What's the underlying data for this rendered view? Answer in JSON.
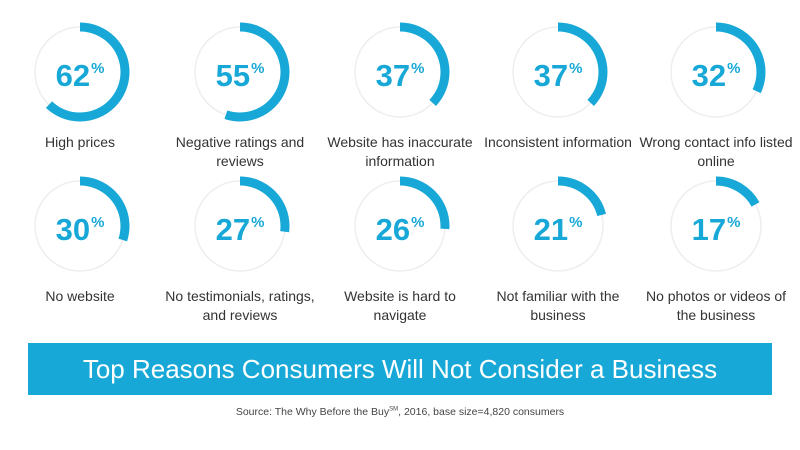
{
  "colors": {
    "accent": "#17a8d7",
    "track": "#eeeeee",
    "text": "#333333"
  },
  "chart_data": {
    "type": "donut",
    "items": [
      {
        "value": 62,
        "label": "High prices"
      },
      {
        "value": 55,
        "label": "Negative ratings and reviews"
      },
      {
        "value": 37,
        "label": "Website has inaccurate information"
      },
      {
        "value": 37,
        "label": "Inconsistent information"
      },
      {
        "value": 32,
        "label": "Wrong contact info listed online"
      },
      {
        "value": 30,
        "label": "No website"
      },
      {
        "value": 27,
        "label": "No testimonials, ratings, and reviews"
      },
      {
        "value": 26,
        "label": "Website is hard to navigate"
      },
      {
        "value": 21,
        "label": "Not familiar with the business"
      },
      {
        "value": 17,
        "label": "No photos or videos of the business"
      }
    ],
    "unit": "%"
  },
  "banner": {
    "title": "Top Reasons Consumers Will Not Consider a Business"
  },
  "source": {
    "prefix": "Source: The Why Before the Buy",
    "superscript": "SM",
    "suffix": ", 2016, base size=4,820 consumers"
  }
}
